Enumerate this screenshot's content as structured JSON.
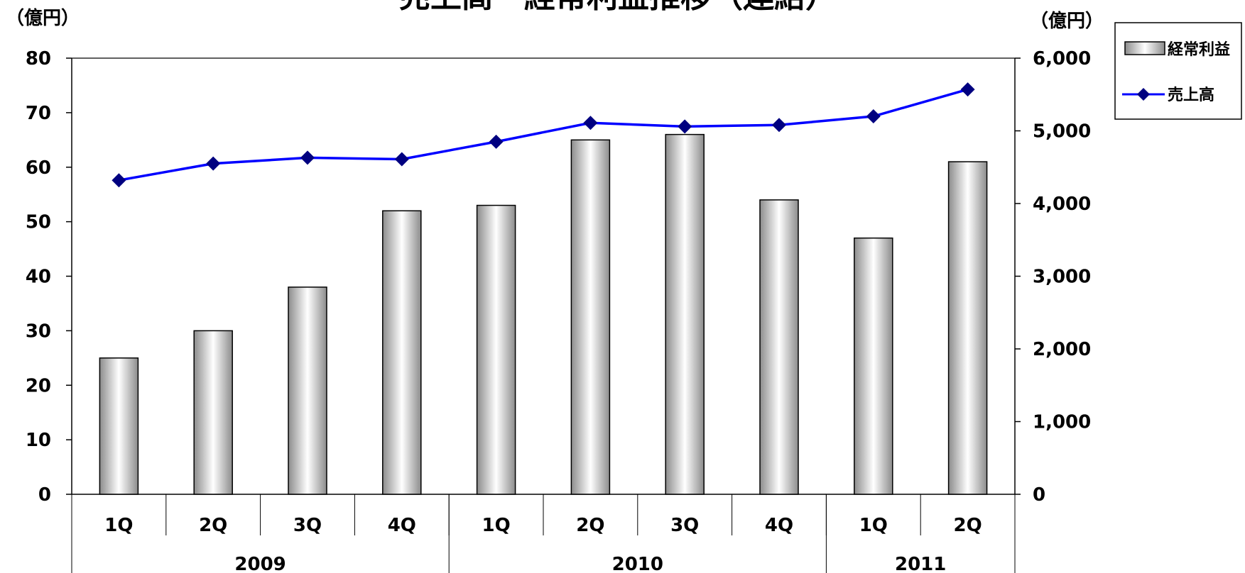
{
  "chart_data": {
    "type": "bar",
    "title": "売上高・経常利益推移（連結）",
    "left_unit": "（億円）",
    "right_unit": "（億円）",
    "categories": [
      "1Q",
      "2Q",
      "3Q",
      "4Q",
      "1Q",
      "2Q",
      "3Q",
      "4Q",
      "1Q",
      "2Q"
    ],
    "year_groups": [
      {
        "label": "2009",
        "count": 4
      },
      {
        "label": "2010",
        "count": 4
      },
      {
        "label": "2011",
        "count": 2
      }
    ],
    "series": [
      {
        "name": "経常利益",
        "type": "bar",
        "axis": "left",
        "values": [
          25,
          30,
          38,
          52,
          53,
          65,
          66,
          54,
          47,
          61
        ]
      },
      {
        "name": "売上高",
        "type": "line",
        "axis": "right",
        "values": [
          4320,
          4550,
          4630,
          4610,
          4850,
          5110,
          5060,
          5080,
          5200,
          5570
        ]
      }
    ],
    "ylim_left": [
      0,
      80
    ],
    "yticks_left": [
      "0",
      "10",
      "20",
      "30",
      "40",
      "50",
      "60",
      "70",
      "80"
    ],
    "ylim_right": [
      0,
      6000
    ],
    "yticks_right": [
      "0",
      "1,000",
      "2,000",
      "3,000",
      "4,000",
      "5,000",
      "6,000"
    ],
    "grid": false,
    "legend_position": "top-right",
    "colors": {
      "line": "#0000ff",
      "marker": "#000080",
      "bar_edge": "#000000",
      "axis": "#000000"
    }
  }
}
